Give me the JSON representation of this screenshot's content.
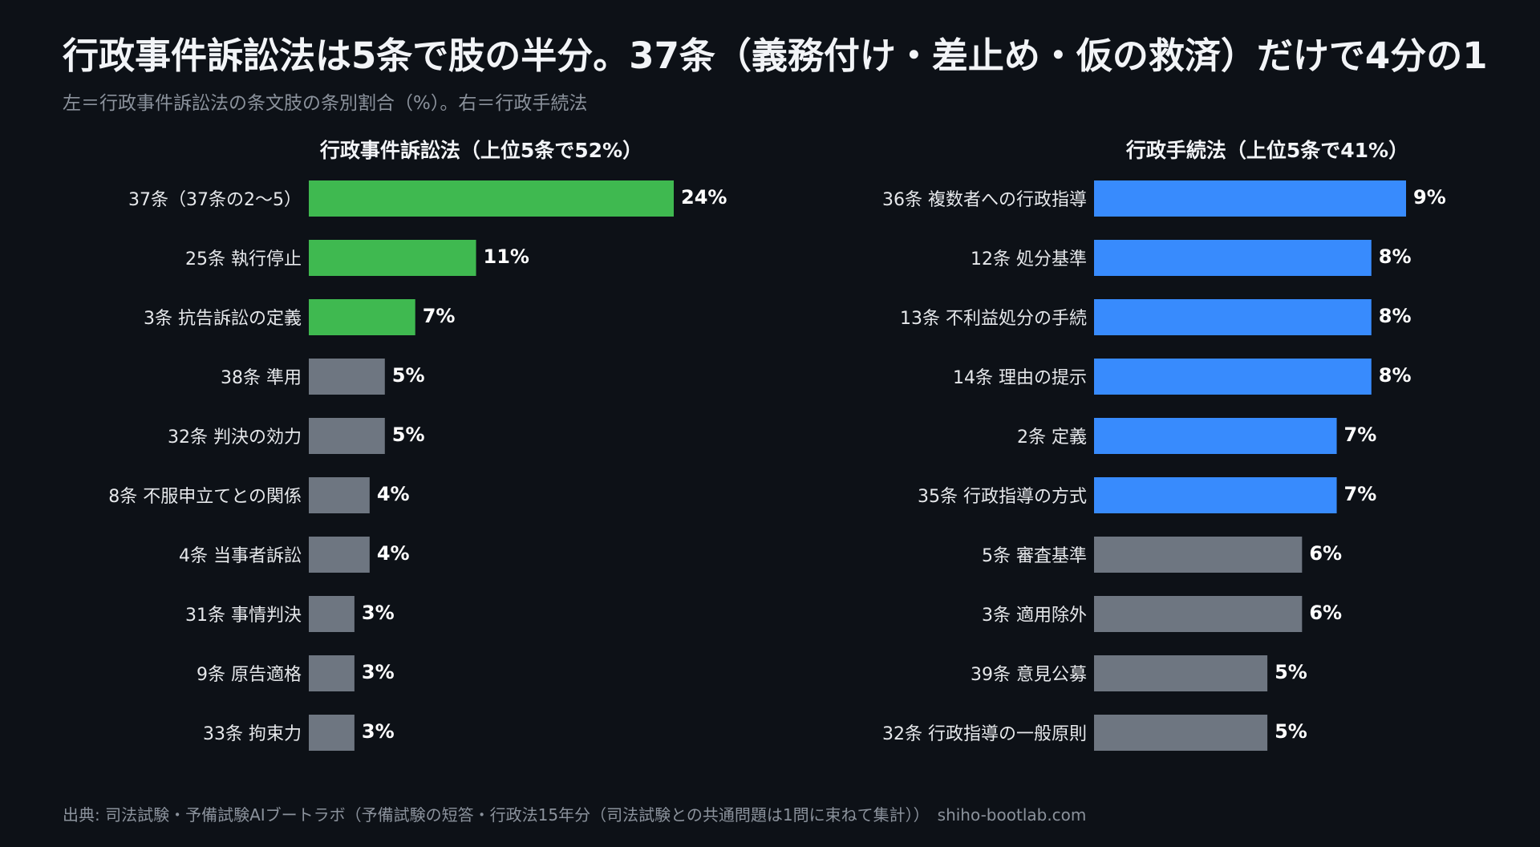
{
  "title": "行政事件訴訟法は5条で肢の半分。37条（義務付け・差止め・仮の救済）だけで4分の1",
  "subtitle": "左＝行政事件訴訟法の条文肢の条別割合（%）。右＝行政手続法",
  "footer": {
    "source": "出典: 司法試験・予備試験AIブートラボ（予備試験の短答・行政法15年分（司法試験との共通問題は1問に束ねて集計））",
    "url": "shiho-bootlab.com"
  },
  "colors": {
    "background": "#0d1117",
    "highlight_left": "#3fb950",
    "highlight_right": "#388bfd",
    "other": "#6e7681",
    "text": "#ffffff",
    "muted": "#8b929c"
  },
  "chart_data": [
    {
      "type": "bar",
      "orientation": "horizontal",
      "title": "行政事件訴訟法（上位5条で52%）",
      "categories": [
        "37条（37条の2〜5）",
        "25条 執行停止",
        "3条 抗告訴訟の定義",
        "38条 準用",
        "32条 判決の効力",
        "8条 不服申立てとの関係",
        "4条 当事者訴訟",
        "31条 事情判決",
        "9条 原告適格",
        "33条 拘束力"
      ],
      "values": [
        24,
        11,
        7,
        5,
        5,
        4,
        4,
        3,
        3,
        3
      ],
      "labels": [
        "24%",
        "11%",
        "7%",
        "5%",
        "5%",
        "4%",
        "4%",
        "3%",
        "3%",
        "3%"
      ],
      "highlighted": [
        true,
        true,
        true,
        false,
        false,
        false,
        false,
        false,
        false,
        false
      ],
      "unit": "%"
    },
    {
      "type": "bar",
      "orientation": "horizontal",
      "title": "行政手続法（上位5条で41%）",
      "categories": [
        "36条 複数者への行政指導",
        "12条 処分基準",
        "13条 不利益処分の手続",
        "14条 理由の提示",
        "2条 定義",
        "35条 行政指導の方式",
        "5条 審査基準",
        "3条 適用除外",
        "39条 意見公募",
        "32条 行政指導の一般原則"
      ],
      "values": [
        9,
        8,
        8,
        8,
        7,
        7,
        6,
        6,
        5,
        5
      ],
      "labels": [
        "9%",
        "8%",
        "8%",
        "8%",
        "7%",
        "7%",
        "6%",
        "6%",
        "5%",
        "5%"
      ],
      "highlighted": [
        true,
        true,
        true,
        true,
        true,
        true,
        false,
        false,
        false,
        false
      ],
      "unit": "%"
    }
  ]
}
